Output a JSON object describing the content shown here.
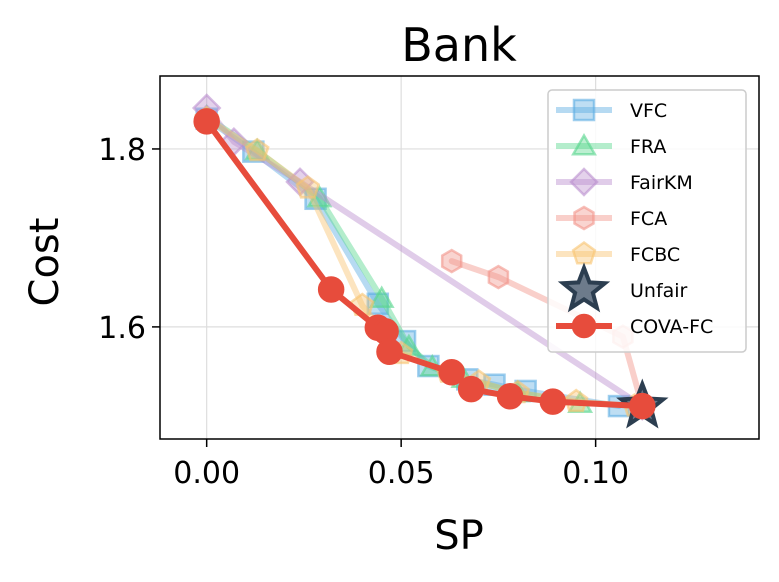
{
  "chart_data": {
    "type": "line",
    "title": "Bank",
    "xlabel": "SP",
    "ylabel": "Cost",
    "xlim": [
      -0.012,
      0.142
    ],
    "ylim": [
      1.474,
      1.882
    ],
    "xticks": [
      0.0,
      0.05,
      0.1
    ],
    "xtick_labels": [
      "0.00",
      "0.05",
      "0.10"
    ],
    "yticks": [
      1.6,
      1.8
    ],
    "ytick_labels": [
      "1.6",
      "1.8"
    ],
    "grid": true,
    "legend_position": "top-right",
    "series": [
      {
        "name": "VFC",
        "color": "#5dade2",
        "marker": "square",
        "x": [
          0.0,
          0.012,
          0.028,
          0.044,
          0.051,
          0.057,
          0.067,
          0.074,
          0.082,
          0.106
        ],
        "y": [
          1.834,
          1.797,
          1.744,
          1.626,
          1.584,
          1.556,
          1.541,
          1.535,
          1.528,
          1.511
        ]
      },
      {
        "name": "FRA",
        "color": "#58d68d",
        "marker": "triangle",
        "x": [
          0.0,
          0.013,
          0.029,
          0.045,
          0.052,
          0.058,
          0.066,
          0.08,
          0.096
        ],
        "y": [
          1.836,
          1.798,
          1.745,
          1.632,
          1.578,
          1.555,
          1.542,
          1.526,
          1.514
        ]
      },
      {
        "name": "FairKM",
        "color": "#bb8fce",
        "marker": "diamond",
        "x": [
          0.0,
          0.007,
          0.024,
          0.112
        ],
        "y": [
          1.846,
          1.808,
          1.763,
          1.511
        ]
      },
      {
        "name": "FCA",
        "color": "#f1948a",
        "marker": "hexagon",
        "x": [
          0.063,
          0.075,
          0.107,
          0.112
        ],
        "y": [
          1.674,
          1.656,
          1.589,
          1.511
        ]
      },
      {
        "name": "FCBC",
        "color": "#f8c471",
        "marker": "pentagon",
        "x": [
          0.0,
          0.013,
          0.026,
          0.04,
          0.05,
          0.062,
          0.07,
          0.08,
          0.095,
          0.11
        ],
        "y": [
          1.834,
          1.798,
          1.756,
          1.624,
          1.57,
          1.549,
          1.538,
          1.526,
          1.516,
          1.511
        ]
      },
      {
        "name": "Unfair",
        "color": "#5d6d7e",
        "marker": "star",
        "x": [
          0.112
        ],
        "y": [
          1.511
        ]
      },
      {
        "name": "COVA-FC",
        "color": "#e74c3c",
        "marker": "circle",
        "x": [
          0.0,
          0.032,
          0.044,
          0.046,
          0.047,
          0.063,
          0.068,
          0.078,
          0.089,
          0.112
        ],
        "y": [
          1.831,
          1.642,
          1.599,
          1.595,
          1.572,
          1.549,
          1.53,
          1.522,
          1.516,
          1.511
        ]
      }
    ]
  }
}
